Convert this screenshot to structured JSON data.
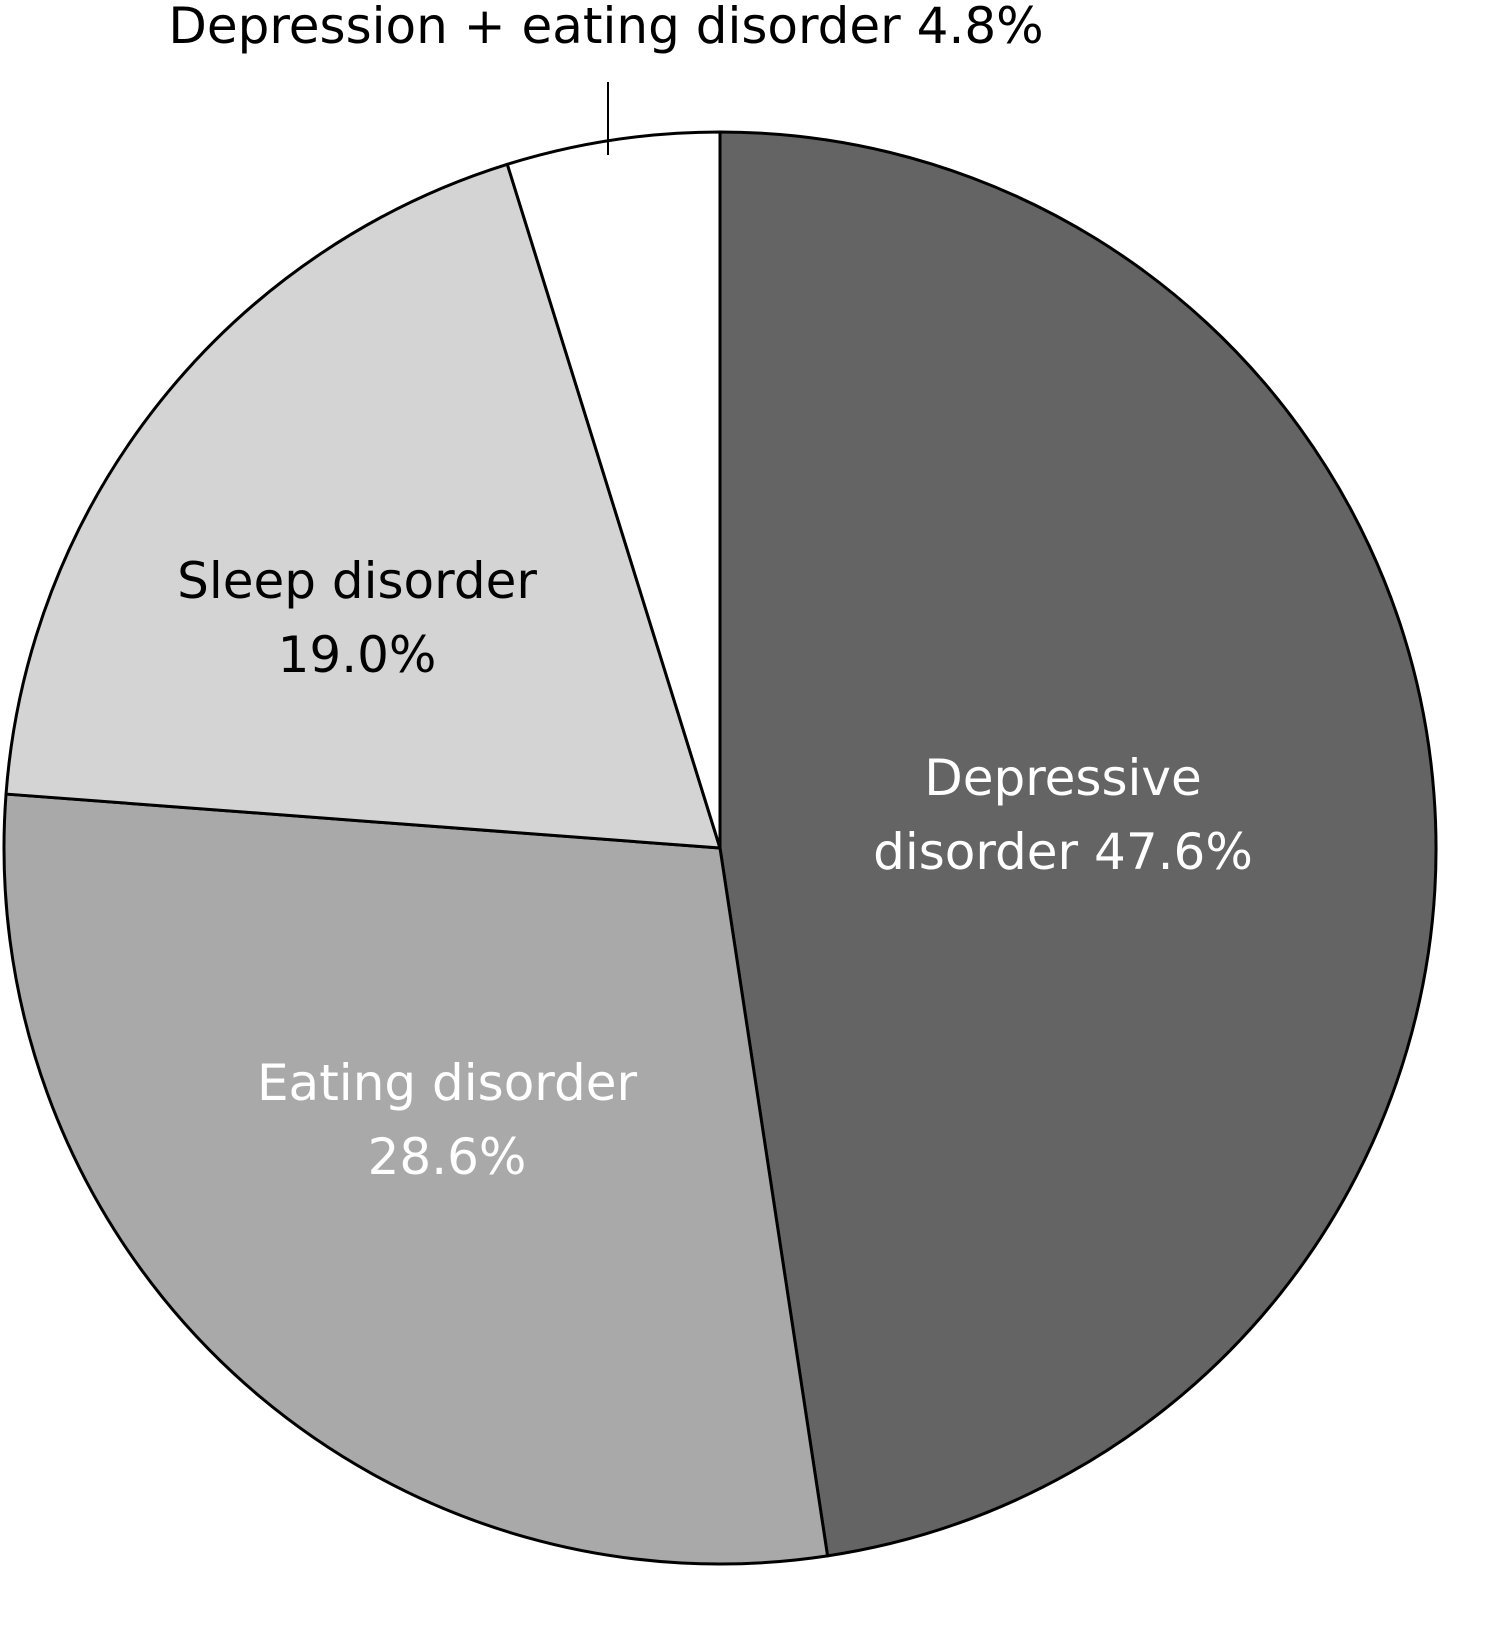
{
  "chart_data": {
    "type": "pie",
    "categories": [
      "Depressive disorder",
      "Eating disorder",
      "Sleep disorder",
      "Depression + eating disorder"
    ],
    "values": [
      47.6,
      28.6,
      19.0,
      4.8
    ],
    "value_labels": [
      "47.6%",
      "28.6%",
      "19.0%",
      "4.8%"
    ],
    "colors": [
      "#646464",
      "#a9a9a9",
      "#d4d4d4",
      "#ffffff"
    ]
  }
}
